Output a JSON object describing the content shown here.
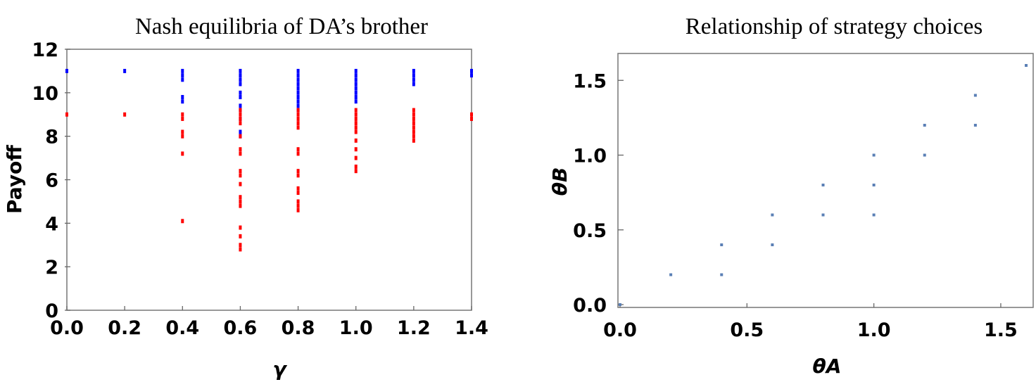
{
  "chart_data": [
    {
      "type": "scatter",
      "title": "Nash equilibria of DA’s brother",
      "xlabel": "γ",
      "ylabel": "Payoff",
      "xlim": [
        0,
        1.4
      ],
      "ylim": [
        0,
        12
      ],
      "xticks": [
        "0.0",
        "0.2",
        "0.4",
        "0.6",
        "0.8",
        "1.0",
        "1.2",
        "1.4"
      ],
      "yticks": [
        "0",
        "2",
        "4",
        "6",
        "8",
        "10",
        "12"
      ],
      "grid": false,
      "series": [
        {
          "color": "#0000ff",
          "points": [
            [
              0.0,
              11.0
            ],
            [
              0.2,
              11.0
            ],
            [
              0.4,
              11.0
            ],
            [
              0.4,
              10.8
            ],
            [
              0.4,
              10.6
            ],
            [
              0.4,
              9.8
            ],
            [
              0.4,
              9.6
            ],
            [
              0.6,
              11.0
            ],
            [
              0.6,
              10.8
            ],
            [
              0.6,
              10.6
            ],
            [
              0.6,
              10.4
            ],
            [
              0.6,
              10.0
            ],
            [
              0.6,
              9.8
            ],
            [
              0.6,
              9.4
            ],
            [
              0.6,
              9.2
            ],
            [
              0.6,
              8.8
            ],
            [
              0.6,
              8.2
            ],
            [
              0.6,
              8.0
            ],
            [
              0.8,
              11.0
            ],
            [
              0.8,
              10.8
            ],
            [
              0.8,
              10.6
            ],
            [
              0.8,
              10.4
            ],
            [
              0.8,
              10.2
            ],
            [
              0.8,
              10.0
            ],
            [
              0.8,
              9.8
            ],
            [
              0.8,
              9.6
            ],
            [
              0.8,
              9.4
            ],
            [
              0.8,
              9.2
            ],
            [
              1.0,
              11.0
            ],
            [
              1.0,
              10.8
            ],
            [
              1.0,
              10.6
            ],
            [
              1.0,
              10.4
            ],
            [
              1.0,
              10.2
            ],
            [
              1.0,
              10.0
            ],
            [
              1.0,
              9.8
            ],
            [
              1.0,
              9.6
            ],
            [
              1.2,
              11.0
            ],
            [
              1.2,
              10.8
            ],
            [
              1.2,
              10.6
            ],
            [
              1.2,
              10.4
            ],
            [
              1.4,
              11.0
            ],
            [
              1.4,
              10.8
            ]
          ]
        },
        {
          "color": "#ff0000",
          "points": [
            [
              0.0,
              9.0
            ],
            [
              0.2,
              9.0
            ],
            [
              0.4,
              9.0
            ],
            [
              0.4,
              8.8
            ],
            [
              0.4,
              8.2
            ],
            [
              0.4,
              8.0
            ],
            [
              0.4,
              7.2
            ],
            [
              0.4,
              4.1
            ],
            [
              0.6,
              9.2
            ],
            [
              0.6,
              9.0
            ],
            [
              0.6,
              8.8
            ],
            [
              0.6,
              8.6
            ],
            [
              0.6,
              8.0
            ],
            [
              0.6,
              7.4
            ],
            [
              0.6,
              7.2
            ],
            [
              0.6,
              6.4
            ],
            [
              0.6,
              6.2
            ],
            [
              0.6,
              5.8
            ],
            [
              0.6,
              5.2
            ],
            [
              0.6,
              5.0
            ],
            [
              0.6,
              4.8
            ],
            [
              0.6,
              3.8
            ],
            [
              0.6,
              3.4
            ],
            [
              0.6,
              3.0
            ],
            [
              0.6,
              2.8
            ],
            [
              0.8,
              9.2
            ],
            [
              0.8,
              9.0
            ],
            [
              0.8,
              8.8
            ],
            [
              0.8,
              8.6
            ],
            [
              0.8,
              8.4
            ],
            [
              0.8,
              7.4
            ],
            [
              0.8,
              7.2
            ],
            [
              0.8,
              6.4
            ],
            [
              0.8,
              6.2
            ],
            [
              0.8,
              5.6
            ],
            [
              0.8,
              5.4
            ],
            [
              0.8,
              5.0
            ],
            [
              0.8,
              4.8
            ],
            [
              0.8,
              4.6
            ],
            [
              1.0,
              9.2
            ],
            [
              1.0,
              9.0
            ],
            [
              1.0,
              8.8
            ],
            [
              1.0,
              8.6
            ],
            [
              1.0,
              8.4
            ],
            [
              1.0,
              8.2
            ],
            [
              1.0,
              7.8
            ],
            [
              1.0,
              7.4
            ],
            [
              1.0,
              7.0
            ],
            [
              1.0,
              6.6
            ],
            [
              1.0,
              6.4
            ],
            [
              1.2,
              9.2
            ],
            [
              1.2,
              9.0
            ],
            [
              1.2,
              8.8
            ],
            [
              1.2,
              8.6
            ],
            [
              1.2,
              8.4
            ],
            [
              1.2,
              8.2
            ],
            [
              1.2,
              8.0
            ],
            [
              1.2,
              7.8
            ],
            [
              1.4,
              9.0
            ],
            [
              1.4,
              8.8
            ]
          ]
        }
      ]
    },
    {
      "type": "scatter",
      "title": "Relationship of strategy choices",
      "xlabel": "θA",
      "ylabel": "θB",
      "xlim": [
        0,
        1.6
      ],
      "ylim": [
        0,
        1.6
      ],
      "xticks": [
        "0.0",
        "0.5",
        "1.0",
        "1.5"
      ],
      "yticks": [
        "0.0",
        "0.5",
        "1.0",
        "1.5"
      ],
      "grid": false,
      "series": [
        {
          "color": "#5a7fb5",
          "points": [
            [
              0.0,
              0.0
            ],
            [
              0.2,
              0.2
            ],
            [
              0.4,
              0.2
            ],
            [
              0.4,
              0.4
            ],
            [
              0.6,
              0.4
            ],
            [
              0.6,
              0.6
            ],
            [
              0.8,
              0.6
            ],
            [
              0.8,
              0.8
            ],
            [
              1.0,
              0.6
            ],
            [
              1.0,
              0.8
            ],
            [
              1.0,
              1.0
            ],
            [
              1.2,
              1.0
            ],
            [
              1.2,
              1.2
            ],
            [
              1.4,
              1.2
            ],
            [
              1.4,
              1.4
            ],
            [
              1.6,
              1.6
            ]
          ]
        }
      ]
    }
  ]
}
